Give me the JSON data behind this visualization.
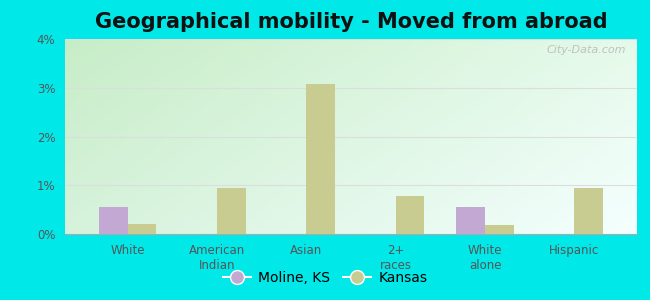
{
  "title": "Geographical mobility - Moved from abroad",
  "categories": [
    "White",
    "American\nIndian",
    "Asian",
    "2+\nraces",
    "White\nalone",
    "Hispanic"
  ],
  "moline_values": [
    0.55,
    0.0,
    0.0,
    0.0,
    0.55,
    0.0
  ],
  "kansas_values": [
    0.2,
    0.95,
    3.08,
    0.78,
    0.18,
    0.95
  ],
  "moline_color": "#c4a8d4",
  "kansas_color": "#c8cc90",
  "ylim": [
    0,
    4.0
  ],
  "yticks": [
    0,
    1,
    2,
    3,
    4
  ],
  "ytick_labels": [
    "0%",
    "1%",
    "2%",
    "3%",
    "4%"
  ],
  "bar_width": 0.32,
  "outer_bg": "#00e8e8",
  "legend_labels": [
    "Moline, KS",
    "Kansas"
  ],
  "title_fontsize": 15,
  "axis_fontsize": 8.5,
  "legend_fontsize": 10,
  "tick_color": "#555555",
  "grid_color": "#dddddd",
  "bg_color_topleft": "#c8e8c0",
  "bg_color_topright": "#e8f0e0",
  "bg_color_bottom": "#e0f8e8"
}
